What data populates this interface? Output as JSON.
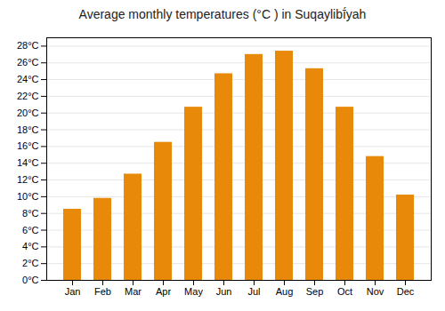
{
  "chart_data": {
    "type": "bar",
    "title": "Average monthly temperatures (°C ) in Suqaylibī́yah",
    "categories": [
      "Jan",
      "Feb",
      "Mar",
      "Apr",
      "May",
      "Jun",
      "Jul",
      "Aug",
      "Sep",
      "Oct",
      "Nov",
      "Dec"
    ],
    "values": [
      8.5,
      9.8,
      12.7,
      16.5,
      20.7,
      24.7,
      27.0,
      27.4,
      25.3,
      20.7,
      14.8,
      10.2
    ],
    "color": "#E8890A",
    "ylim": [
      0,
      29
    ],
    "yticks": [
      {
        "value": 0,
        "label": "0°C"
      },
      {
        "value": 2,
        "label": "2°C"
      },
      {
        "value": 4,
        "label": "4°C"
      },
      {
        "value": 6,
        "label": "6°C"
      },
      {
        "value": 8,
        "label": "8°C"
      },
      {
        "value": 10,
        "label": "10°C"
      },
      {
        "value": 12,
        "label": "12°C"
      },
      {
        "value": 14,
        "label": "14°C"
      },
      {
        "value": 16,
        "label": "16°C"
      },
      {
        "value": 18,
        "label": "18°C"
      },
      {
        "value": 20,
        "label": "20°C"
      },
      {
        "value": 22,
        "label": "22°C"
      },
      {
        "value": 24,
        "label": "24°C"
      },
      {
        "value": 26,
        "label": "26°C"
      },
      {
        "value": 28,
        "label": "28°C"
      }
    ],
    "grid": true
  }
}
